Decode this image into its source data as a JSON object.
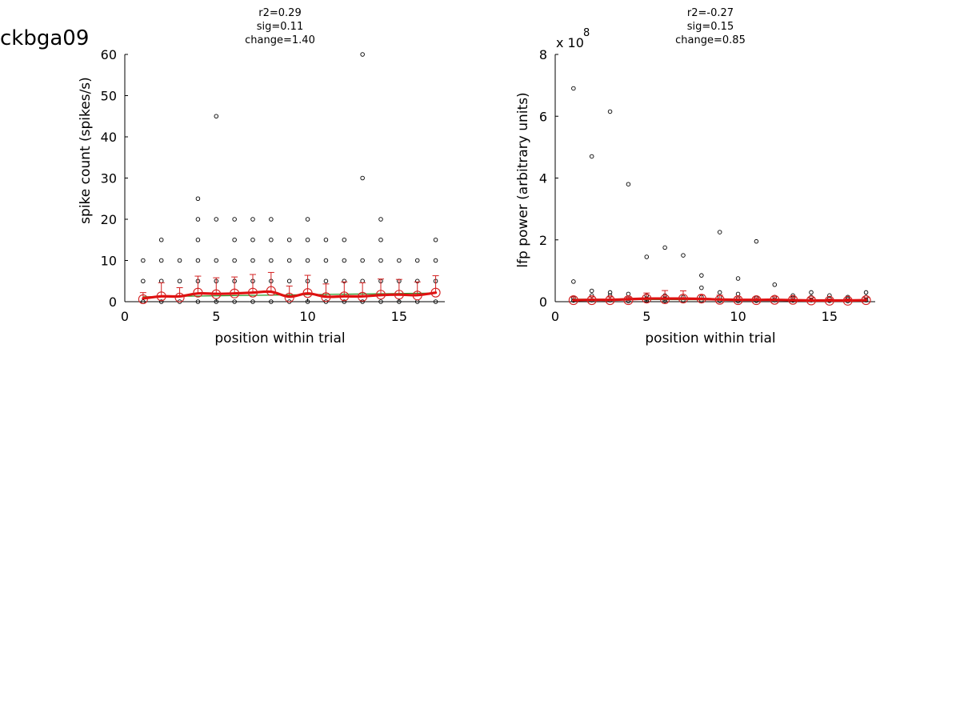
{
  "figure_title": "ckbga09",
  "chart_data": [
    {
      "type": "scatter",
      "annotation": [
        "r2=0.29",
        "sig=0.11",
        "change=1.40"
      ],
      "xlabel": "position within trial",
      "ylabel": "spike count (spikes/s)",
      "xlim": [
        0,
        17.5
      ],
      "ylim": [
        0,
        60
      ],
      "xticks": [
        0,
        5,
        10,
        15
      ],
      "yticks": [
        0,
        10,
        20,
        30,
        40,
        50,
        60
      ],
      "exponent_label": "",
      "grid": false,
      "legend": "none",
      "series": [
        {
          "kind": "trial-points",
          "points": [
            [
              1,
              0
            ],
            [
              1,
              5
            ],
            [
              1,
              10
            ],
            [
              2,
              0
            ],
            [
              2,
              5
            ],
            [
              2,
              10
            ],
            [
              2,
              15
            ],
            [
              3,
              0
            ],
            [
              3,
              5
            ],
            [
              3,
              10
            ],
            [
              4,
              0
            ],
            [
              4,
              5
            ],
            [
              4,
              10
            ],
            [
              4,
              15
            ],
            [
              4,
              20
            ],
            [
              4,
              25
            ],
            [
              5,
              0
            ],
            [
              5,
              5
            ],
            [
              5,
              10
            ],
            [
              5,
              20
            ],
            [
              5,
              45
            ],
            [
              6,
              0
            ],
            [
              6,
              5
            ],
            [
              6,
              10
            ],
            [
              6,
              15
            ],
            [
              6,
              20
            ],
            [
              7,
              0
            ],
            [
              7,
              5
            ],
            [
              7,
              10
            ],
            [
              7,
              15
            ],
            [
              7,
              20
            ],
            [
              8,
              0
            ],
            [
              8,
              5
            ],
            [
              8,
              10
            ],
            [
              8,
              15
            ],
            [
              8,
              20
            ],
            [
              9,
              0
            ],
            [
              9,
              5
            ],
            [
              9,
              10
            ],
            [
              9,
              15
            ],
            [
              10,
              0
            ],
            [
              10,
              5
            ],
            [
              10,
              10
            ],
            [
              10,
              15
            ],
            [
              10,
              20
            ],
            [
              11,
              0
            ],
            [
              11,
              5
            ],
            [
              11,
              10
            ],
            [
              11,
              15
            ],
            [
              12,
              0
            ],
            [
              12,
              5
            ],
            [
              12,
              10
            ],
            [
              12,
              15
            ],
            [
              13,
              0
            ],
            [
              13,
              5
            ],
            [
              13,
              10
            ],
            [
              13,
              30
            ],
            [
              13,
              60
            ],
            [
              14,
              0
            ],
            [
              14,
              5
            ],
            [
              14,
              10
            ],
            [
              14,
              15
            ],
            [
              14,
              20
            ],
            [
              15,
              0
            ],
            [
              15,
              5
            ],
            [
              15,
              10
            ],
            [
              16,
              0
            ],
            [
              16,
              5
            ],
            [
              16,
              10
            ],
            [
              17,
              0
            ],
            [
              17,
              5
            ],
            [
              17,
              10
            ],
            [
              17,
              15
            ]
          ]
        },
        {
          "kind": "mean",
          "x": [
            1,
            2,
            3,
            4,
            5,
            6,
            7,
            8,
            9,
            10,
            11,
            12,
            13,
            14,
            15,
            16,
            17
          ],
          "y": [
            0.6,
            1.3,
            1.0,
            2.2,
            1.8,
            2.0,
            2.2,
            2.6,
            1.0,
            2.1,
            1.1,
            1.3,
            1.2,
            1.7,
            1.7,
            1.5,
            2.2
          ],
          "err": [
            1.6,
            3.3,
            2.4,
            4.0,
            4.0,
            4.0,
            4.4,
            4.5,
            2.8,
            4.3,
            3.2,
            3.5,
            3.4,
            3.8,
            3.7,
            3.3,
            4.1
          ],
          "color": "#d42020"
        },
        {
          "kind": "smoothed",
          "x": [
            1,
            2,
            3,
            4,
            5,
            6,
            7,
            8,
            9,
            10,
            11,
            12,
            13,
            14,
            15,
            16,
            17
          ],
          "y": [
            0.8,
            1.3,
            1.3,
            2.0,
            1.9,
            2.0,
            2.2,
            2.4,
            1.2,
            2.0,
            1.2,
            1.3,
            1.3,
            1.6,
            1.7,
            1.6,
            2.2
          ],
          "color": "#e01010"
        },
        {
          "kind": "fit",
          "x": [
            1,
            17
          ],
          "y": [
            1.2,
            2.1
          ],
          "color": "#2a9a2a"
        }
      ]
    },
    {
      "type": "scatter",
      "annotation": [
        "r2=-0.27",
        "sig=0.15",
        "change=0.85"
      ],
      "xlabel": "position within trial",
      "ylabel": "lfp power (arbitrary units)",
      "xlim": [
        0,
        17.5
      ],
      "ylim": [
        0,
        8
      ],
      "xticks": [
        0,
        5,
        10,
        15
      ],
      "yticks": [
        0,
        2,
        4,
        6,
        8
      ],
      "exponent_label": [
        "x 10",
        "8"
      ],
      "grid": false,
      "legend": "none",
      "series": [
        {
          "kind": "trial-points",
          "points": [
            [
              1,
              6.9
            ],
            [
              1,
              0.65
            ],
            [
              1,
              0.12
            ],
            [
              1,
              0.04
            ],
            [
              2,
              4.7
            ],
            [
              2,
              0.35
            ],
            [
              2,
              0.2
            ],
            [
              2,
              0.05
            ],
            [
              3,
              6.15
            ],
            [
              3,
              0.3
            ],
            [
              3,
              0.2
            ],
            [
              3,
              0.05
            ],
            [
              4,
              3.8
            ],
            [
              4,
              0.25
            ],
            [
              4,
              0.1
            ],
            [
              4,
              0.02
            ],
            [
              5,
              1.45
            ],
            [
              5,
              0.2
            ],
            [
              5,
              0.1
            ],
            [
              5,
              0.03
            ],
            [
              6,
              1.75
            ],
            [
              6,
              0.2
            ],
            [
              6,
              0.1
            ],
            [
              6,
              0.03
            ],
            [
              7,
              1.5
            ],
            [
              7,
              0.15
            ],
            [
              7,
              0.05
            ],
            [
              8,
              0.85
            ],
            [
              8,
              0.45
            ],
            [
              8,
              0.15
            ],
            [
              8,
              0.05
            ],
            [
              9,
              2.25
            ],
            [
              9,
              0.3
            ],
            [
              9,
              0.15
            ],
            [
              9,
              0.03
            ],
            [
              10,
              0.75
            ],
            [
              10,
              0.25
            ],
            [
              10,
              0.1
            ],
            [
              10,
              0.02
            ],
            [
              11,
              1.95
            ],
            [
              11,
              0.12
            ],
            [
              11,
              0.03
            ],
            [
              12,
              0.55
            ],
            [
              12,
              0.15
            ],
            [
              12,
              0.05
            ],
            [
              13,
              0.2
            ],
            [
              13,
              0.12
            ],
            [
              13,
              0.04
            ],
            [
              14,
              0.3
            ],
            [
              14,
              0.15
            ],
            [
              14,
              0.05
            ],
            [
              15,
              0.2
            ],
            [
              15,
              0.1
            ],
            [
              15,
              0.03
            ],
            [
              16,
              0.15
            ],
            [
              16,
              0.08
            ],
            [
              16,
              0.02
            ],
            [
              17,
              0.3
            ],
            [
              17,
              0.15
            ],
            [
              17,
              0.05
            ]
          ]
        },
        {
          "kind": "mean",
          "x": [
            1,
            2,
            3,
            4,
            5,
            6,
            7,
            8,
            9,
            10,
            11,
            12,
            13,
            14,
            15,
            16,
            17
          ],
          "y": [
            0.05,
            0.05,
            0.05,
            0.05,
            0.1,
            0.08,
            0.1,
            0.1,
            0.06,
            0.05,
            0.05,
            0.06,
            0.06,
            0.04,
            0.03,
            0.03,
            0.05
          ],
          "err": [
            0.1,
            0.1,
            0.1,
            0.1,
            0.18,
            0.28,
            0.25,
            0.12,
            0.15,
            0.1,
            0.08,
            0.1,
            0.08,
            0.08,
            0.06,
            0.06,
            0.08
          ],
          "color": "#d42020"
        },
        {
          "kind": "smoothed",
          "x": [
            1,
            2,
            3,
            4,
            5,
            6,
            7,
            8,
            9,
            10,
            11,
            12,
            13,
            14,
            15,
            16,
            17
          ],
          "y": [
            0.05,
            0.06,
            0.06,
            0.08,
            0.1,
            0.1,
            0.1,
            0.09,
            0.07,
            0.06,
            0.06,
            0.06,
            0.05,
            0.04,
            0.04,
            0.04,
            0.05
          ],
          "color": "#e01010"
        },
        {
          "kind": "fit",
          "x": [
            1,
            17
          ],
          "y": [
            0.08,
            0.04
          ],
          "color": "#2a9a2a"
        }
      ]
    }
  ]
}
